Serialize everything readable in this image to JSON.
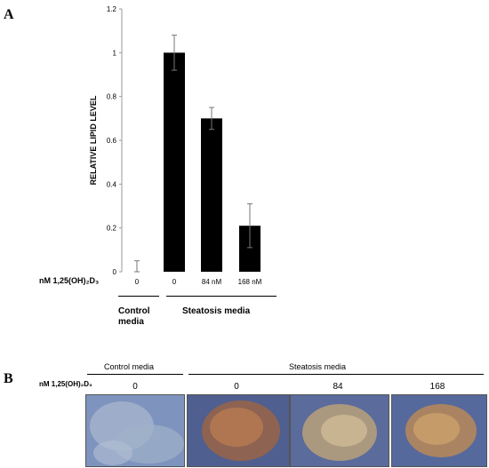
{
  "panel_a": {
    "letter": "A",
    "dose_header": "nM 1,25(OH)₂D₃",
    "group_control": "Control\nmedia",
    "group_steatosis": "Steatosis media"
  },
  "panel_b": {
    "letter": "B",
    "dose_header": "nM 1,25(OH)₂D₃",
    "group_control": "Control media",
    "group_steatosis": "Steatosis media",
    "doses": [
      "0",
      "0",
      "84",
      "168"
    ],
    "images": [
      {
        "name": "control-0",
        "tint": "#8fa3c6",
        "stain": "#9aaac0"
      },
      {
        "name": "steatosis-0",
        "tint": "#4a5a8a",
        "stain": "#b0704a"
      },
      {
        "name": "steatosis-84",
        "tint": "#56679a",
        "stain": "#c8b48a"
      },
      {
        "name": "steatosis-168",
        "tint": "#52659a",
        "stain": "#c89a60"
      }
    ]
  },
  "chart_data": {
    "type": "bar",
    "categories": [
      "0",
      "0",
      "84 nM",
      "168 nM"
    ],
    "values": [
      0.0,
      1.0,
      0.7,
      0.21
    ],
    "errors": [
      0.05,
      0.08,
      0.05,
      0.1
    ],
    "ylabel": "RELATIVE LIPID LEVEL",
    "ylim": [
      0,
      1.2
    ],
    "yticks": [
      "0",
      "0.2",
      "0.4",
      "0.6",
      "0.8",
      "1",
      "1.2"
    ],
    "bar_color": "#000000"
  }
}
